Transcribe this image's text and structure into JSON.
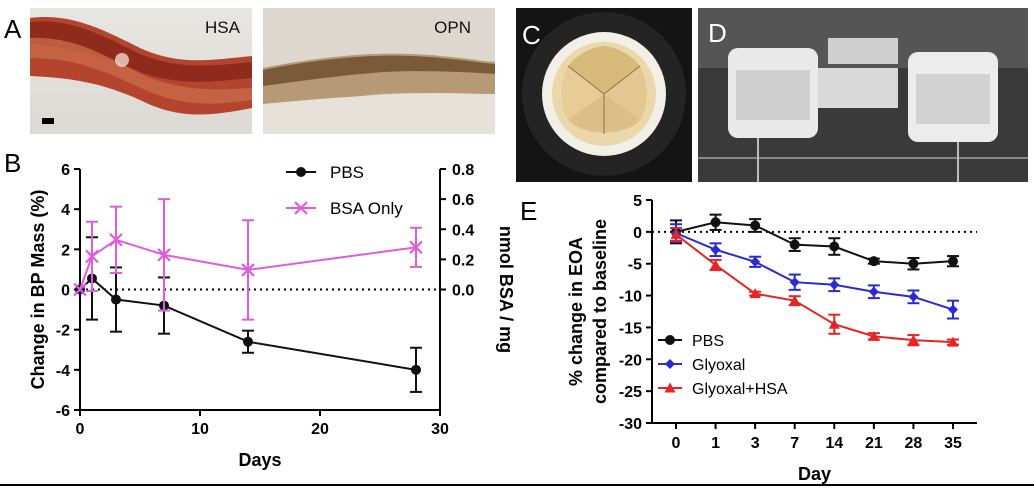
{
  "panel_letters": {
    "a": "A",
    "b": "B",
    "c": "C",
    "d": "D",
    "e": "E"
  },
  "panel_a": {
    "left_label": "HSA",
    "right_label": "OPN"
  },
  "chart_data": [
    {
      "type": "line",
      "xlabel": "Days",
      "ylabel": "Change in BP Mass (%)",
      "y2label": "nmol BSA / mg",
      "xlim": [
        0,
        30
      ],
      "ylim": [
        -6,
        6
      ],
      "y2lim": [
        -0.8,
        0.8
      ],
      "x_ticks": [
        "0",
        "10",
        "20",
        "30"
      ],
      "y_ticks": [
        "-6",
        "-4",
        "-2",
        "0",
        "2",
        "4",
        "6"
      ],
      "y2_ticks": [
        "0.0",
        "0.2",
        "0.4",
        "0.6",
        "0.8"
      ],
      "legend_position": "top-right",
      "series": [
        {
          "name": "PBS",
          "axis": "left",
          "color": "#111111",
          "marker": "circle",
          "x": [
            0,
            1,
            3,
            7,
            14,
            28
          ],
          "values": [
            0,
            0.55,
            -0.5,
            -0.8,
            -2.6,
            -4.0
          ],
          "errors": [
            0,
            2.05,
            1.6,
            1.4,
            0.55,
            1.1
          ]
        },
        {
          "name": "BSA Only",
          "axis": "right",
          "color": "#e05be0",
          "marker": "x",
          "x": [
            0,
            1,
            3,
            7,
            14,
            28
          ],
          "values": [
            0.0,
            0.22,
            0.33,
            0.23,
            0.13,
            0.28
          ],
          "errors": [
            0,
            0.23,
            0.22,
            0.37,
            0.33,
            0.13
          ]
        }
      ]
    },
    {
      "type": "line",
      "xlabel": "Day",
      "ylabel": "% change in EOA compared to baseline",
      "ylabel_lines": [
        "% change in EOA",
        "compared to baseline"
      ],
      "categories": [
        "0",
        "1",
        "3",
        "7",
        "14",
        "21",
        "28",
        "35"
      ],
      "ylim": [
        -30,
        5
      ],
      "y_ticks": [
        "5",
        "0",
        "-5",
        "-10",
        "-15",
        "-20",
        "-25",
        "-30"
      ],
      "legend_position": "bottom-left",
      "series": [
        {
          "name": "PBS",
          "color": "#111111",
          "marker": "circle",
          "values": [
            0,
            1.5,
            1.0,
            -2.0,
            -2.3,
            -4.6,
            -5.0,
            -4.6
          ],
          "errors": [
            1.8,
            1.2,
            1.0,
            1.0,
            1.3,
            0.4,
            0.9,
            0.8
          ]
        },
        {
          "name": "Glyoxal",
          "color": "#2a2ad0",
          "marker": "diamond",
          "values": [
            -0.2,
            -2.8,
            -4.7,
            -7.9,
            -8.3,
            -9.4,
            -10.2,
            -12.2
          ],
          "errors": [
            1.4,
            1.0,
            0.8,
            1.2,
            1.0,
            1.0,
            1.0,
            1.4
          ]
        },
        {
          "name": "Glyoxal+HSA",
          "color": "#e52424",
          "marker": "triangle",
          "values": [
            -0.4,
            -5.2,
            -9.7,
            -10.8,
            -14.5,
            -16.4,
            -17.0,
            -17.3
          ],
          "errors": [
            1.0,
            0.8,
            0.3,
            0.7,
            1.5,
            0.5,
            0.8,
            0.4
          ]
        }
      ]
    }
  ]
}
